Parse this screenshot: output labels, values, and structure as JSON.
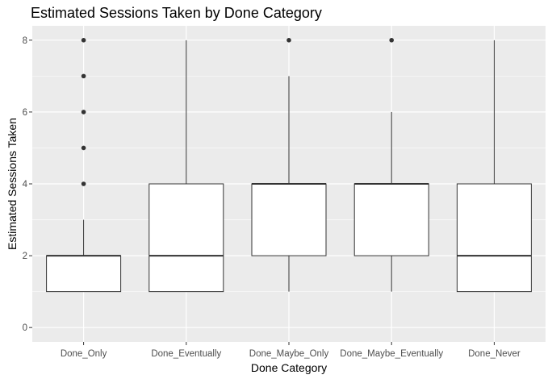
{
  "chart_data": {
    "type": "boxplot",
    "title": "Estimated Sessions Taken by Done Category",
    "xlabel": "Done Category",
    "ylabel": "Estimated Sessions Taken",
    "ylim": [
      -0.4,
      8.4
    ],
    "yticks": [
      0,
      2,
      4,
      6,
      8
    ],
    "grid": true,
    "categories": [
      "Done_Only",
      "Done_Eventually",
      "Done_Maybe_Only",
      "Done_Maybe_Eventually",
      "Done_Never"
    ],
    "boxes": [
      {
        "category": "Done_Only",
        "lower_whisker": 1,
        "q1": 1,
        "median": 2,
        "q3": 2,
        "upper_whisker": 3,
        "outliers": [
          4,
          5,
          6,
          7,
          8
        ]
      },
      {
        "category": "Done_Eventually",
        "lower_whisker": 1,
        "q1": 1,
        "median": 2,
        "q3": 4,
        "upper_whisker": 8,
        "outliers": []
      },
      {
        "category": "Done_Maybe_Only",
        "lower_whisker": 1,
        "q1": 2,
        "median": 4,
        "q3": 4,
        "upper_whisker": 7,
        "outliers": [
          8
        ]
      },
      {
        "category": "Done_Maybe_Eventually",
        "lower_whisker": 1,
        "q1": 2,
        "median": 4,
        "q3": 4,
        "upper_whisker": 6,
        "outliers": [
          8
        ]
      },
      {
        "category": "Done_Never",
        "lower_whisker": 1,
        "q1": 1,
        "median": 2,
        "q3": 4,
        "upper_whisker": 8,
        "outliers": []
      }
    ],
    "colors": {
      "panel_background": "#ebebeb",
      "grid_major": "#ffffff",
      "box_fill": "#ffffff",
      "box_stroke": "#333333",
      "outlier": "#333333",
      "tick_label": "#4d4d4d"
    }
  }
}
